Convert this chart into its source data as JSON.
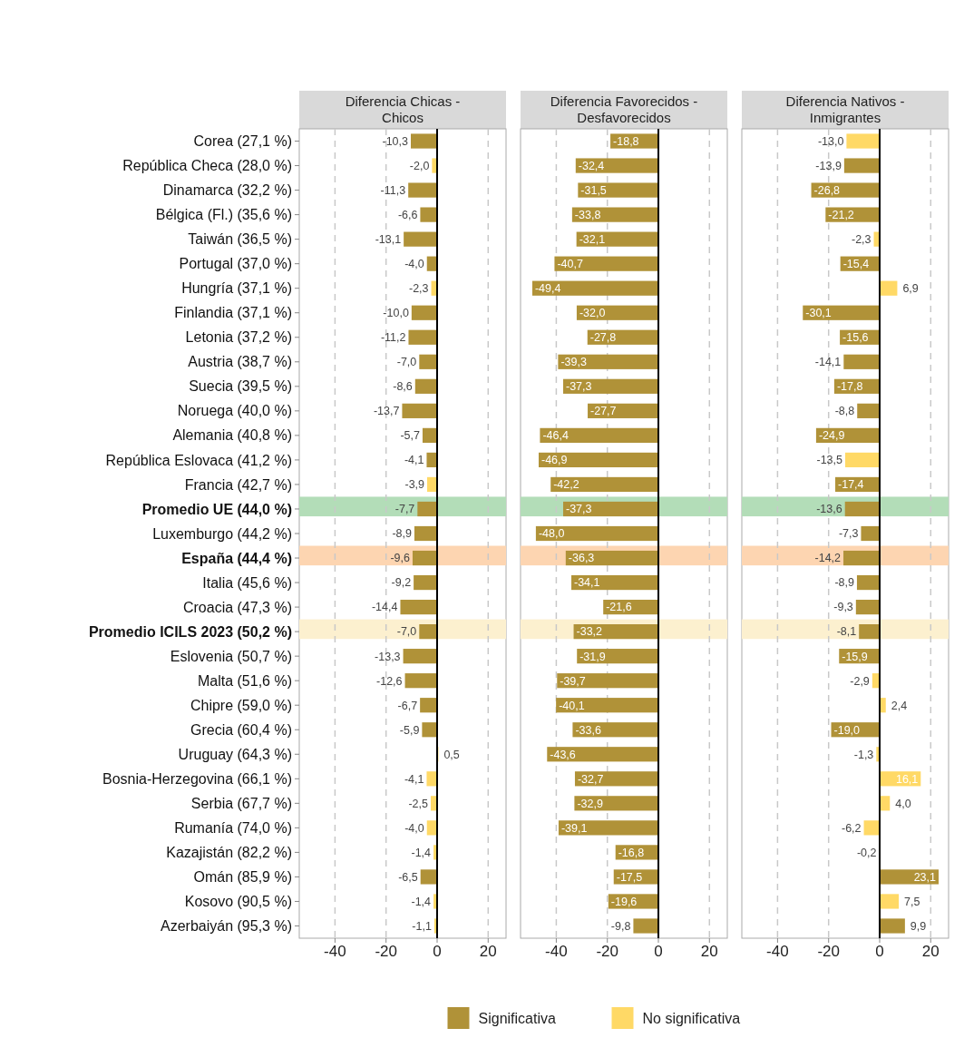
{
  "chart_data": [
    {
      "type": "bar",
      "orientation": "horizontal",
      "title": "Diferencia Chicas -\nChicos",
      "categories": [
        "Corea (27,1 %)",
        "República Checa (28,0 %)",
        "Dinamarca (32,2 %)",
        "Bélgica (Fl.) (35,6 %)",
        "Taiwán (36,5 %)",
        "Portugal (37,0 %)",
        "Hungría (37,1 %)",
        "Finlandia (37,1 %)",
        "Letonia (37,2 %)",
        "Austria (38,7 %)",
        "Suecia (39,5 %)",
        "Noruega (40,0 %)",
        "Alemania (40,8 %)",
        "República Eslovaca (41,2 %)",
        "Francia (42,7 %)",
        "Promedio UE (44,0 %)",
        "Luxemburgo (44,2 %)",
        "España (44,4 %)",
        "Italia (45,6 %)",
        "Croacia (47,3 %)",
        "Promedio ICILS 2023 (50,2 %)",
        "Eslovenia (50,7 %)",
        "Malta (51,6 %)",
        "Chipre (59,0 %)",
        "Grecia (60,4 %)",
        "Uruguay (64,3 %)",
        "Bosnia-Herzegovina (66,1 %)",
        "Serbia (67,7 %)",
        "Rumanía (74,0 %)",
        "Kazajistán (82,2 %)",
        "Omán (85,9 %)",
        "Kosovo (90,5 %)",
        "Azerbaiyán (95,3 %)"
      ],
      "series": [
        {
          "color": "#b09238",
          "values": [
            -10.3,
            null,
            -11.3,
            -6.6,
            -13.1,
            -4.0,
            null,
            -10.0,
            -11.2,
            -7.0,
            -8.6,
            -13.7,
            -5.7,
            -4.1,
            null,
            -7.7,
            -8.9,
            -9.6,
            -9.2,
            -14.4,
            -7.0,
            -13.3,
            -12.6,
            -6.7,
            -5.9,
            null,
            null,
            null,
            null,
            null,
            -6.5,
            null,
            null
          ],
          "value_labels": [
            "-10,3",
            null,
            "-11,3",
            "-6,6",
            "-13,1",
            "-4,0",
            null,
            "-10,0",
            "-11,2",
            "-7,0",
            "-8,6",
            "-13,7",
            "-5,7",
            "-4,1",
            null,
            "-7,7",
            "-8,9",
            "-9,6",
            "-9,2",
            "-14,4",
            "-7,0",
            "-13,3",
            "-12,6",
            "-6,7",
            "-5,9",
            null,
            null,
            null,
            null,
            null,
            "-6,5",
            null,
            null
          ]
        },
        {
          "color": "#ffd966",
          "values": [
            null,
            -2.0,
            null,
            null,
            null,
            null,
            -2.3,
            null,
            null,
            null,
            null,
            null,
            null,
            null,
            -3.9,
            null,
            null,
            null,
            null,
            null,
            null,
            null,
            null,
            null,
            null,
            0.5,
            -4.1,
            -2.5,
            -4.0,
            -1.4,
            null,
            -1.4,
            -1.1
          ],
          "value_labels": [
            null,
            "-2,0",
            null,
            null,
            null,
            null,
            "-2,3",
            null,
            null,
            null,
            null,
            null,
            null,
            null,
            "-3,9",
            null,
            null,
            null,
            null,
            null,
            null,
            null,
            null,
            null,
            null,
            "0,5",
            "-4,1",
            "-2,5",
            "-4,0",
            "-1,4",
            null,
            "-1,4",
            "-1,1"
          ]
        }
      ],
      "xlim": [
        -54,
        27
      ],
      "xticks": [
        -40,
        -20,
        0,
        20
      ],
      "grid": "x",
      "line_style": "dashed",
      "ref_lines": [
        {
          "axis": "x",
          "value": 0,
          "color": "#000000"
        }
      ],
      "bands": [
        {
          "axis": "y",
          "from": "Promedio UE (44,0 %)",
          "to": "Promedio UE (44,0 %)",
          "color": "#b3ddb8"
        },
        {
          "axis": "y",
          "from": "España (44,4 %)",
          "to": "España (44,4 %)",
          "color": "#fdd5b1"
        },
        {
          "axis": "y",
          "from": "Promedio ICILS 2023 (50,2 %)",
          "to": "Promedio ICILS 2023 (50,2 %)",
          "color": "#fcf0cf"
        }
      ]
    },
    {
      "type": "bar",
      "orientation": "horizontal",
      "title": "Diferencia Favorecidos -\nDesfavorecidos",
      "tick_labels": "x",
      "categories": [
        "Corea (27,1 %)",
        "República Checa (28,0 %)",
        "Dinamarca (32,2 %)",
        "Bélgica (Fl.) (35,6 %)",
        "Taiwán (36,5 %)",
        "Portugal (37,0 %)",
        "Hungría (37,1 %)",
        "Finlandia (37,1 %)",
        "Letonia (37,2 %)",
        "Austria (38,7 %)",
        "Suecia (39,5 %)",
        "Noruega (40,0 %)",
        "Alemania (40,8 %)",
        "República Eslovaca (41,2 %)",
        "Francia (42,7 %)",
        "Promedio UE (44,0 %)",
        "Luxemburgo (44,2 %)",
        "España (44,4 %)",
        "Italia (45,6 %)",
        "Croacia (47,3 %)",
        "Promedio ICILS 2023 (50,2 %)",
        "Eslovenia (50,7 %)",
        "Malta (51,6 %)",
        "Chipre (59,0 %)",
        "Grecia (60,4 %)",
        "Uruguay (64,3 %)",
        "Bosnia-Herzegovina (66,1 %)",
        "Serbia (67,7 %)",
        "Rumanía (74,0 %)",
        "Kazajistán (82,2 %)",
        "Omán (85,9 %)",
        "Kosovo (90,5 %)",
        "Azerbaiyán (95,3 %)"
      ],
      "series": [
        {
          "color": "#b09238",
          "values": [
            -18.8,
            -32.4,
            -31.5,
            -33.8,
            -32.1,
            -40.7,
            -49.4,
            -32.0,
            -27.8,
            -39.3,
            -37.3,
            -27.7,
            -46.4,
            -46.9,
            -42.2,
            -37.3,
            -48.0,
            -36.3,
            -34.1,
            -21.6,
            -33.2,
            -31.9,
            -39.7,
            -40.1,
            -33.6,
            -43.6,
            -32.7,
            -32.9,
            -39.1,
            -16.8,
            -17.5,
            -19.6,
            -9.8
          ],
          "value_labels": [
            "-18,8",
            "-32,4",
            "-31,5",
            "-33,8",
            "-32,1",
            "-40,7",
            "-49,4",
            "-32,0",
            "-27,8",
            "-39,3",
            "-37,3",
            "-27,7",
            "-46,4",
            "-46,9",
            "-42,2",
            "-37,3",
            "-48,0",
            "-36,3",
            "-34,1",
            "-21,6",
            "-33,2",
            "-31,9",
            "-39,7",
            "-40,1",
            "-33,6",
            "-43,6",
            "-32,7",
            "-32,9",
            "-39,1",
            "-16,8",
            "-17,5",
            "-19,6",
            "-9,8"
          ]
        }
      ],
      "xlim": [
        -54,
        27
      ],
      "xticks": [
        -40,
        -20,
        0,
        20
      ],
      "grid": "x",
      "line_style": "dashed",
      "ref_lines": [
        {
          "axis": "x",
          "value": 0,
          "color": "#000000"
        }
      ],
      "bands": [
        {
          "axis": "y",
          "from": "Promedio UE (44,0 %)",
          "to": "Promedio UE (44,0 %)",
          "color": "#b3ddb8"
        },
        {
          "axis": "y",
          "from": "España (44,4 %)",
          "to": "España (44,4 %)",
          "color": "#fdd5b1"
        },
        {
          "axis": "y",
          "from": "Promedio ICILS 2023 (50,2 %)",
          "to": "Promedio ICILS 2023 (50,2 %)",
          "color": "#fcf0cf"
        }
      ]
    },
    {
      "type": "bar",
      "orientation": "horizontal",
      "title": "Diferencia Nativos -\nInmigrantes",
      "tick_labels": "x",
      "legend": "bottom",
      "categories": [
        "Corea (27,1 %)",
        "República Checa (28,0 %)",
        "Dinamarca (32,2 %)",
        "Bélgica (Fl.) (35,6 %)",
        "Taiwán (36,5 %)",
        "Portugal (37,0 %)",
        "Hungría (37,1 %)",
        "Finlandia (37,1 %)",
        "Letonia (37,2 %)",
        "Austria (38,7 %)",
        "Suecia (39,5 %)",
        "Noruega (40,0 %)",
        "Alemania (40,8 %)",
        "República Eslovaca (41,2 %)",
        "Francia (42,7 %)",
        "Promedio UE (44,0 %)",
        "Luxemburgo (44,2 %)",
        "España (44,4 %)",
        "Italia (45,6 %)",
        "Croacia (47,3 %)",
        "Promedio ICILS 2023 (50,2 %)",
        "Eslovenia (50,7 %)",
        "Malta (51,6 %)",
        "Chipre (59,0 %)",
        "Grecia (60,4 %)",
        "Uruguay (64,3 %)",
        "Bosnia-Herzegovina (66,1 %)",
        "Serbia (67,7 %)",
        "Rumanía (74,0 %)",
        "Kazajistán (82,2 %)",
        "Omán (85,9 %)",
        "Kosovo (90,5 %)",
        "Azerbaiyán (95,3 %)"
      ],
      "series": [
        {
          "name": "Significativa",
          "color": "#b09238",
          "values": [
            null,
            -13.9,
            -26.8,
            -21.2,
            null,
            -15.4,
            null,
            -30.1,
            -15.6,
            -14.1,
            -17.8,
            -8.8,
            -24.9,
            null,
            -17.4,
            -13.6,
            -7.3,
            -14.2,
            -8.9,
            -9.3,
            -8.1,
            -15.9,
            null,
            null,
            -19.0,
            null,
            null,
            null,
            null,
            null,
            23.1,
            null,
            9.9
          ],
          "value_labels": [
            null,
            "-13,9",
            "-26,8",
            "-21,2",
            null,
            "-15,4",
            null,
            "-30,1",
            "-15,6",
            "-14,1",
            "-17,8",
            "-8,8",
            "-24,9",
            null,
            "-17,4",
            "-13,6",
            "-7,3",
            "-14,2",
            "-8,9",
            "-9,3",
            "-8,1",
            "-15,9",
            null,
            null,
            "-19,0",
            null,
            null,
            null,
            null,
            null,
            "23,1",
            null,
            "9,9"
          ]
        },
        {
          "name": "No significativa",
          "color": "#ffd966",
          "values": [
            -13.0,
            null,
            null,
            null,
            -2.3,
            null,
            6.9,
            null,
            null,
            null,
            null,
            null,
            null,
            -13.5,
            null,
            null,
            null,
            null,
            null,
            null,
            null,
            null,
            -2.9,
            2.4,
            null,
            -1.3,
            16.1,
            4.0,
            -6.2,
            -0.2,
            null,
            7.5,
            null
          ],
          "value_labels": [
            "-13,0",
            null,
            null,
            null,
            "-2,3",
            null,
            "6,9",
            null,
            null,
            null,
            null,
            null,
            null,
            "-13,5",
            null,
            null,
            null,
            null,
            null,
            null,
            null,
            null,
            "-2,9",
            "2,4",
            null,
            "-1,3",
            "16,1",
            "4,0",
            "-6,2",
            "-0,2",
            null,
            "7,5",
            null
          ]
        }
      ],
      "xlim": [
        -54,
        27
      ],
      "xticks": [
        -40,
        -20,
        0,
        20
      ],
      "grid": "x",
      "line_style": "dashed",
      "ref_lines": [
        {
          "axis": "x",
          "value": 0,
          "color": "#000000"
        }
      ],
      "bands": [
        {
          "axis": "y",
          "from": "Promedio UE (44,0 %)",
          "to": "Promedio UE (44,0 %)",
          "color": "#b3ddb8"
        },
        {
          "axis": "y",
          "from": "España (44,4 %)",
          "to": "España (44,4 %)",
          "color": "#fdd5b1"
        },
        {
          "axis": "y",
          "from": "Promedio ICILS 2023 (50,2 %)",
          "to": "Promedio ICILS 2023 (50,2 %)",
          "color": "#fcf0cf"
        }
      ]
    }
  ]
}
